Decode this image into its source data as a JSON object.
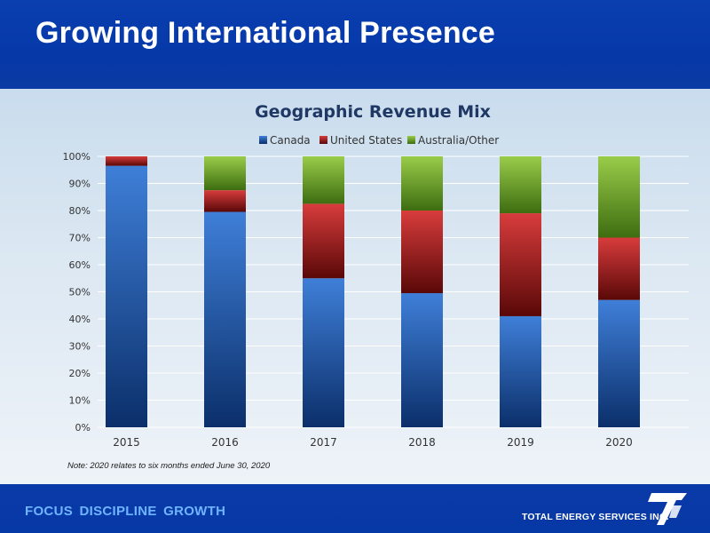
{
  "header": {
    "title": "Growing International Presence"
  },
  "note": "Note:  2020 relates to six months ended June 30, 2020",
  "footer": {
    "tagline": "FOCUS  DISCIPLINE  GROWTH",
    "company": "TOTAL ENERGY SERVICES INC."
  },
  "chart_data": {
    "type": "bar",
    "stacked": true,
    "title": "Geographic Revenue Mix",
    "categories": [
      "2015",
      "2016",
      "2017",
      "2018",
      "2019",
      "2020"
    ],
    "series": [
      {
        "name": "Canada",
        "color": "#2a64c0",
        "values": [
          96.5,
          79.5,
          55,
          49.5,
          41,
          47
        ]
      },
      {
        "name": "United States",
        "color": "#b42020",
        "values": [
          3.5,
          8,
          27.5,
          30.5,
          38,
          23
        ]
      },
      {
        "name": "Australia/Other",
        "color": "#7aa83a",
        "values": [
          0,
          12.5,
          17.5,
          20,
          21,
          30
        ]
      }
    ],
    "ylim": [
      0,
      100
    ],
    "yticks": [
      "0%",
      "10%",
      "20%",
      "30%",
      "40%",
      "50%",
      "60%",
      "70%",
      "80%",
      "90%",
      "100%"
    ],
    "grid": true,
    "legend": "top-center"
  }
}
